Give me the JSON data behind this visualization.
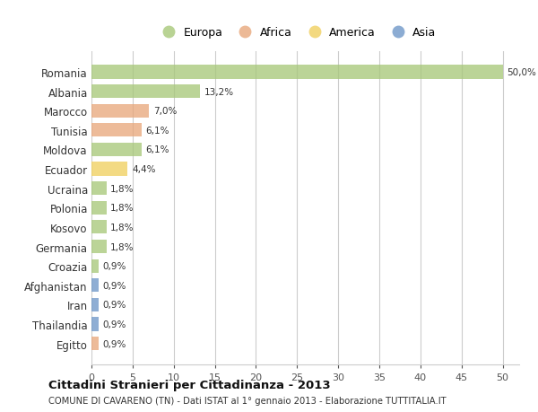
{
  "countries": [
    "Romania",
    "Albania",
    "Marocco",
    "Tunisia",
    "Moldova",
    "Ecuador",
    "Ucraina",
    "Polonia",
    "Kosovo",
    "Germania",
    "Croazia",
    "Afghanistan",
    "Iran",
    "Thailandia",
    "Egitto"
  ],
  "values": [
    50.0,
    13.2,
    7.0,
    6.1,
    6.1,
    4.4,
    1.8,
    1.8,
    1.8,
    1.8,
    0.9,
    0.9,
    0.9,
    0.9,
    0.9
  ],
  "labels": [
    "50,0%",
    "13,2%",
    "7,0%",
    "6,1%",
    "6,1%",
    "4,4%",
    "1,8%",
    "1,8%",
    "1,8%",
    "1,8%",
    "0,9%",
    "0,9%",
    "0,9%",
    "0,9%",
    "0,9%"
  ],
  "continents": [
    "Europa",
    "Europa",
    "Africa",
    "Africa",
    "Europa",
    "America",
    "Europa",
    "Europa",
    "Europa",
    "Europa",
    "Europa",
    "Asia",
    "Asia",
    "Asia",
    "Africa"
  ],
  "continent_colors": {
    "Europa": "#a8c87a",
    "Africa": "#e8a87c",
    "America": "#f0d060",
    "Asia": "#7098c8"
  },
  "legend_order": [
    "Europa",
    "Africa",
    "America",
    "Asia"
  ],
  "legend_colors": [
    "#a8c87a",
    "#e8a87c",
    "#f0d060",
    "#7098c8"
  ],
  "xlim": [
    0,
    52
  ],
  "xticks": [
    0,
    5,
    10,
    15,
    20,
    25,
    30,
    35,
    40,
    45,
    50
  ],
  "title": "Cittadini Stranieri per Cittadinanza - 2013",
  "subtitle": "COMUNE DI CAVARENO (TN) - Dati ISTAT al 1° gennaio 2013 - Elaborazione TUTTITALIA.IT",
  "background_color": "#ffffff",
  "grid_color": "#cccccc",
  "bar_height": 0.7
}
